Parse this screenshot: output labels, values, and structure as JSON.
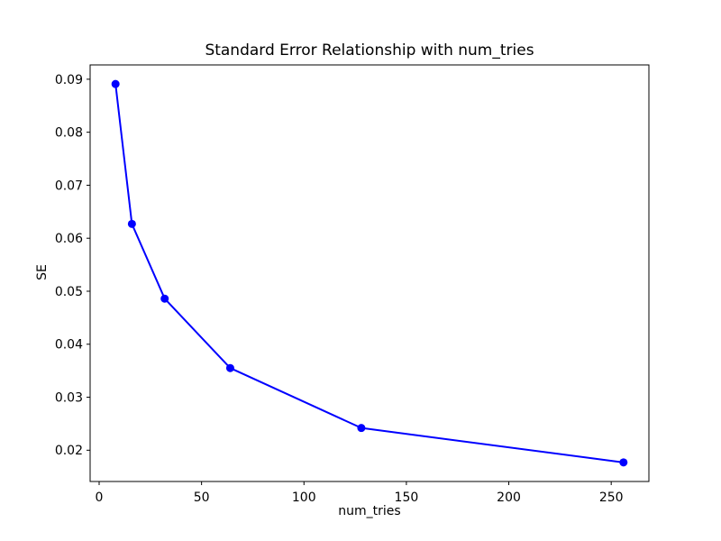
{
  "chart_data": {
    "type": "line",
    "title": "Standard Error Relationship with num_tries",
    "xlabel": "num_tries",
    "ylabel": "SE",
    "x": [
      8,
      16,
      32,
      64,
      128,
      256
    ],
    "y": [
      0.0891,
      0.0627,
      0.0486,
      0.0355,
      0.0242,
      0.0177
    ],
    "x_ticks": [
      0,
      50,
      100,
      150,
      200,
      250
    ],
    "y_ticks": [
      0.02,
      0.03,
      0.04,
      0.05,
      0.06,
      0.07,
      0.08,
      0.09
    ],
    "y_tick_decimals": 2,
    "xlim": [
      -4.4,
      268.4
    ],
    "ylim": [
      0.0141,
      0.0927
    ],
    "grid": false,
    "legend": "none",
    "line_color": "#0000ff",
    "marker": "circle",
    "frame_color": "#000000",
    "background": "#ffffff"
  }
}
